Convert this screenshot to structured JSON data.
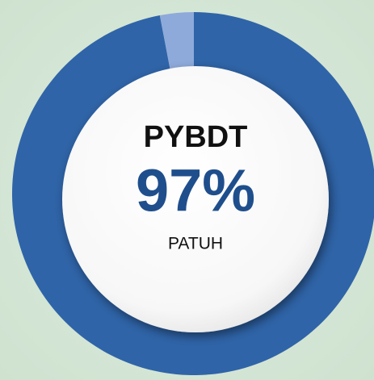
{
  "chart_data": {
    "type": "pie",
    "title": "PYBDT",
    "label": "PATUH",
    "values": [
      97,
      3
    ],
    "value_labels": [
      "97%",
      null
    ],
    "colors": [
      "#2f64a8",
      "#8eaadb"
    ],
    "donut": true
  }
}
